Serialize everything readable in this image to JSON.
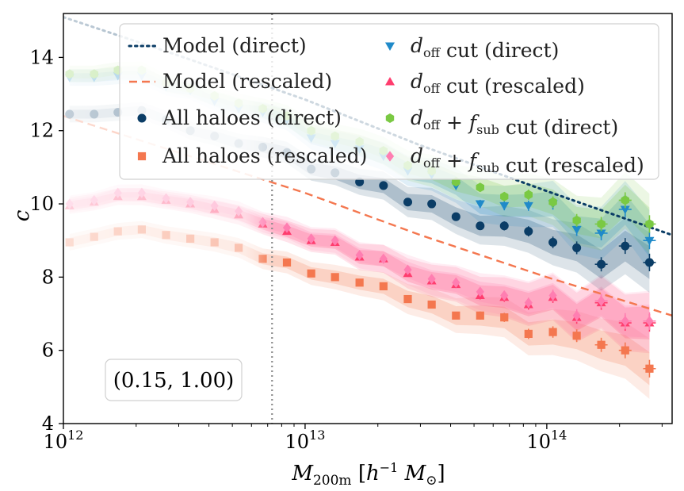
{
  "chart_data": {
    "type": "scatter",
    "xscale": "log",
    "xlim": [
      1000000000000.0,
      330000000000000.0
    ],
    "ylim": [
      4,
      15.2
    ],
    "xlabel": "M_200m [h^-1 M_sun]",
    "ylabel": "c",
    "x_ticks": [
      "10^12",
      "10^13",
      "10^14"
    ],
    "y_ticks": [
      4,
      6,
      8,
      10,
      12,
      14
    ],
    "vline_x": 7300000000000.0,
    "annotation": "(0.15, 1.00)",
    "models": [
      {
        "name": "Model (direct)",
        "style": "dotted",
        "color": "#0b3d66",
        "x": [
          1000000000000.0,
          3000000000000.0,
          10000000000000.0,
          30000000000000.0,
          100000000000000.0,
          330000000000000.0
        ],
        "y": [
          15.1,
          14.05,
          12.85,
          11.6,
          10.35,
          9.15
        ]
      },
      {
        "name": "Model (rescaled)",
        "style": "dashed",
        "color": "#f4774f",
        "x": [
          1000000000000.0,
          3000000000000.0,
          10000000000000.0,
          30000000000000.0,
          100000000000000.0,
          330000000000000.0
        ],
        "y": [
          12.4,
          11.4,
          10.3,
          9.15,
          8.0,
          6.95
        ]
      }
    ],
    "series": [
      {
        "name": "All haloes (direct)",
        "marker": "circle",
        "color": "#0b3d66",
        "x": [
          1060000000000.0,
          1340000000000.0,
          1680000000000.0,
          2110000000000.0,
          2660000000000.0,
          3350000000000.0,
          4220000000000.0,
          5310000000000.0,
          6680000000000.0,
          8410000000000.0,
          10600000000000.0,
          13300000000000.0,
          16800000000000.0,
          21100000000000.0,
          26600000000000.0,
          33400000000000.0,
          42100000000000.0,
          53000000000000.0,
          66700000000000.0,
          84000000000000.0,
          106000000000000.0,
          133000000000000.0,
          168000000000000.0,
          211000000000000.0,
          266000000000000.0
        ],
        "y": [
          12.45,
          12.45,
          12.5,
          12.55,
          12.3,
          12.0,
          11.85,
          11.65,
          11.55,
          11.4,
          10.95,
          10.85,
          10.6,
          10.5,
          10.05,
          10.0,
          9.65,
          9.4,
          9.4,
          9.25,
          8.95,
          8.8,
          8.35,
          8.85,
          8.4
        ]
      },
      {
        "name": "All haloes (rescaled)",
        "marker": "square",
        "color": "#f4774f",
        "x": [
          1060000000000.0,
          1340000000000.0,
          1680000000000.0,
          2110000000000.0,
          2660000000000.0,
          3350000000000.0,
          4220000000000.0,
          5310000000000.0,
          6680000000000.0,
          8410000000000.0,
          10600000000000.0,
          13300000000000.0,
          16800000000000.0,
          21100000000000.0,
          26600000000000.0,
          33400000000000.0,
          42100000000000.0,
          53000000000000.0,
          66700000000000.0,
          84000000000000.0,
          106000000000000.0,
          133000000000000.0,
          168000000000000.0,
          211000000000000.0,
          266000000000000.0
        ],
        "y": [
          8.95,
          9.1,
          9.25,
          9.3,
          9.15,
          9.05,
          8.95,
          8.8,
          8.5,
          8.4,
          8.1,
          8.0,
          7.85,
          7.75,
          7.4,
          7.25,
          6.95,
          6.95,
          6.9,
          6.45,
          6.5,
          6.4,
          6.15,
          6.0,
          5.5
        ]
      },
      {
        "name": "d_off cut (direct)",
        "marker": "triangle-down",
        "color": "#1f8ac9",
        "x": [
          1060000000000.0,
          1340000000000.0,
          1680000000000.0,
          2110000000000.0,
          2660000000000.0,
          3350000000000.0,
          4220000000000.0,
          5310000000000.0,
          6680000000000.0,
          8410000000000.0,
          10600000000000.0,
          13300000000000.0,
          16800000000000.0,
          21100000000000.0,
          26600000000000.0,
          33400000000000.0,
          42100000000000.0,
          53000000000000.0,
          66700000000000.0,
          84000000000000.0,
          106000000000000.0,
          133000000000000.0,
          168000000000000.0,
          211000000000000.0,
          266000000000000.0
        ],
        "y": [
          13.45,
          13.45,
          13.5,
          13.5,
          13.2,
          13.1,
          12.8,
          12.6,
          12.5,
          12.3,
          11.8,
          11.65,
          11.5,
          11.3,
          10.9,
          10.8,
          10.5,
          10.0,
          9.95,
          9.95,
          10.0,
          9.3,
          9.2,
          9.85,
          9.0
        ]
      },
      {
        "name": "d_off cut (rescaled)",
        "marker": "triangle-up",
        "color": "#ff3d6e",
        "x": [
          1060000000000.0,
          1340000000000.0,
          1680000000000.0,
          2110000000000.0,
          2660000000000.0,
          3350000000000.0,
          4220000000000.0,
          5310000000000.0,
          6680000000000.0,
          8410000000000.0,
          10600000000000.0,
          13300000000000.0,
          16800000000000.0,
          21100000000000.0,
          26600000000000.0,
          33400000000000.0,
          42100000000000.0,
          53000000000000.0,
          66700000000000.0,
          84000000000000.0,
          106000000000000.0,
          133000000000000.0,
          168000000000000.0,
          211000000000000.0,
          266000000000000.0
        ],
        "y": [
          9.95,
          10.05,
          10.2,
          10.2,
          10.1,
          10.0,
          9.85,
          9.7,
          9.45,
          9.25,
          9.0,
          8.95,
          8.55,
          8.5,
          8.1,
          7.9,
          7.8,
          7.5,
          7.45,
          7.25,
          7.45,
          6.9,
          7.3,
          6.75,
          6.75
        ]
      },
      {
        "name": "d_off + f_sub cut (direct)",
        "marker": "hexagon",
        "color": "#7ac943",
        "x": [
          1060000000000.0,
          1340000000000.0,
          1680000000000.0,
          2110000000000.0,
          2660000000000.0,
          3350000000000.0,
          4220000000000.0,
          5310000000000.0,
          6680000000000.0,
          8410000000000.0,
          10600000000000.0,
          13300000000000.0,
          16800000000000.0,
          21100000000000.0,
          26600000000000.0,
          33400000000000.0,
          42100000000000.0,
          53000000000000.0,
          66700000000000.0,
          84000000000000.0,
          106000000000000.0,
          133000000000000.0,
          168000000000000.0,
          211000000000000.0,
          266000000000000.0
        ],
        "y": [
          13.55,
          13.55,
          13.65,
          13.65,
          13.3,
          13.15,
          12.95,
          12.75,
          12.6,
          12.4,
          12.0,
          11.85,
          11.7,
          11.45,
          11.05,
          10.9,
          10.6,
          10.45,
          10.2,
          10.25,
          10.05,
          9.55,
          9.45,
          10.1,
          9.45
        ]
      },
      {
        "name": "d_off + f_sub cut (rescaled)",
        "marker": "diamond",
        "color": "#ff7eb1",
        "x": [
          1060000000000.0,
          1340000000000.0,
          1680000000000.0,
          2110000000000.0,
          2660000000000.0,
          3350000000000.0,
          4220000000000.0,
          5310000000000.0,
          6680000000000.0,
          8410000000000.0,
          10600000000000.0,
          13300000000000.0,
          16800000000000.0,
          21100000000000.0,
          26600000000000.0,
          33400000000000.0,
          42100000000000.0,
          53000000000000.0,
          66700000000000.0,
          84000000000000.0,
          106000000000000.0,
          133000000000000.0,
          168000000000000.0,
          211000000000000.0,
          266000000000000.0
        ],
        "y": [
          10.0,
          10.1,
          10.3,
          10.3,
          10.15,
          10.05,
          9.95,
          9.8,
          9.5,
          9.35,
          9.05,
          9.0,
          8.6,
          8.5,
          8.2,
          7.95,
          7.85,
          7.6,
          7.5,
          7.3,
          7.5,
          6.95,
          7.35,
          6.8,
          6.8
        ]
      }
    ],
    "legend": {
      "placement": "top-right",
      "items": [
        {
          "label": "Model (direct)",
          "series": "Model (direct)"
        },
        {
          "label": "d_off cut (direct)",
          "series": "d_off cut (direct)"
        },
        {
          "label": "Model (rescaled)",
          "series": "Model (rescaled)"
        },
        {
          "label": "d_off cut (rescaled)",
          "series": "d_off cut (rescaled)"
        },
        {
          "label": "All haloes (direct)",
          "series": "All haloes (direct)"
        },
        {
          "label": "d_off + f_sub cut (direct)",
          "series": "d_off + f_sub cut (direct)"
        },
        {
          "label": "All haloes (rescaled)",
          "series": "All haloes (rescaled)"
        },
        {
          "label": "d_off + f_sub cut (rescaled)",
          "series": "d_off + f_sub cut (rescaled)"
        }
      ]
    }
  }
}
